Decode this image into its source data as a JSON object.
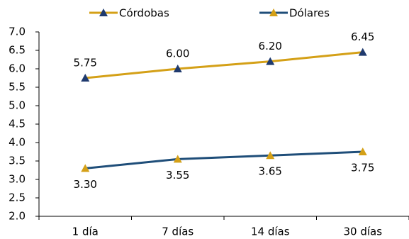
{
  "chart_data": {
    "type": "line",
    "categories": [
      "1 día",
      "7 días",
      "14 días",
      "30 días"
    ],
    "series": [
      {
        "name": "Córdobas",
        "values": [
          5.75,
          6.0,
          6.2,
          6.45
        ],
        "labels": [
          "5.75",
          "6.00",
          "6.20",
          "6.45"
        ],
        "line_color": "#D4A017",
        "marker_color": "#1F3A6E",
        "label_position": "above"
      },
      {
        "name": "Dólares",
        "values": [
          3.3,
          3.55,
          3.65,
          3.75
        ],
        "labels": [
          "3.30",
          "3.55",
          "3.65",
          "3.75"
        ],
        "line_color": "#1F4E79",
        "marker_color": "#D4A017",
        "label_position": "below"
      }
    ],
    "ylim": [
      2.0,
      7.0
    ],
    "yticks": [
      "2.0",
      "2.5",
      "3.0",
      "3.5",
      "4.0",
      "4.5",
      "5.0",
      "5.5",
      "6.0",
      "6.5",
      "7.0"
    ],
    "grid": false,
    "legend_position": "top",
    "marker": "triangle"
  }
}
